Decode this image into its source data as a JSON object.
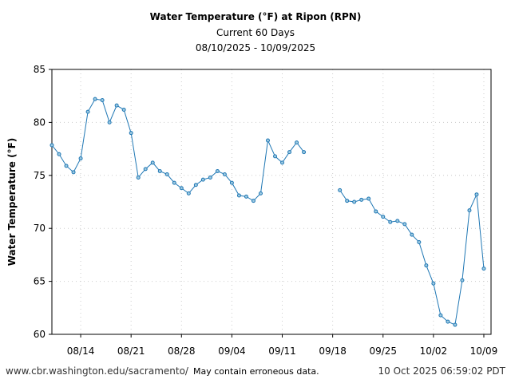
{
  "chart_data": {
    "type": "line",
    "title": "Water Temperature (°F) at Ripon (RPN)",
    "subtitle": "Current 60 Days",
    "date_range": "08/10/2025 - 10/09/2025",
    "xlabel": "",
    "ylabel": "Water Temperature (°F)",
    "ylim": [
      60,
      85
    ],
    "yticks": [
      60,
      65,
      70,
      75,
      80,
      85
    ],
    "xticks": [
      {
        "label": "08/14",
        "day": 4
      },
      {
        "label": "08/21",
        "day": 11
      },
      {
        "label": "08/28",
        "day": 18
      },
      {
        "label": "09/04",
        "day": 25
      },
      {
        "label": "09/11",
        "day": 32
      },
      {
        "label": "09/18",
        "day": 39
      },
      {
        "label": "09/25",
        "day": 46
      },
      {
        "label": "10/02",
        "day": 53
      },
      {
        "label": "10/09",
        "day": 60
      }
    ],
    "xlim_days": [
      0,
      61
    ],
    "start_date": "08/10",
    "grid": true,
    "color": "#1f77b4",
    "series": [
      {
        "name": "Water Temperature",
        "values": [
          77.85,
          77.0,
          75.9,
          75.3,
          76.6,
          81.0,
          82.2,
          82.1,
          80.0,
          81.6,
          81.2,
          79.0,
          74.8,
          75.6,
          76.2,
          75.4,
          75.1,
          74.3,
          73.8,
          73.3,
          74.1,
          74.6,
          74.8,
          75.4,
          75.1,
          74.3,
          73.1,
          73.0,
          72.6,
          73.3,
          78.3,
          76.8,
          76.2,
          77.2,
          78.1,
          77.2,
          null,
          null,
          null,
          null,
          73.6,
          72.6,
          72.5,
          72.7,
          72.8,
          71.6,
          71.1,
          70.6,
          70.7,
          70.4,
          69.4,
          68.7,
          66.5,
          64.8,
          61.8,
          61.2,
          60.9,
          65.1,
          71.7,
          73.2,
          66.2
        ]
      }
    ]
  },
  "footer": {
    "url": "www.cbr.washington.edu/sacramento/",
    "note": "May contain erroneous data.",
    "timestamp": "10 Oct 2025 06:59:02 PDT"
  }
}
